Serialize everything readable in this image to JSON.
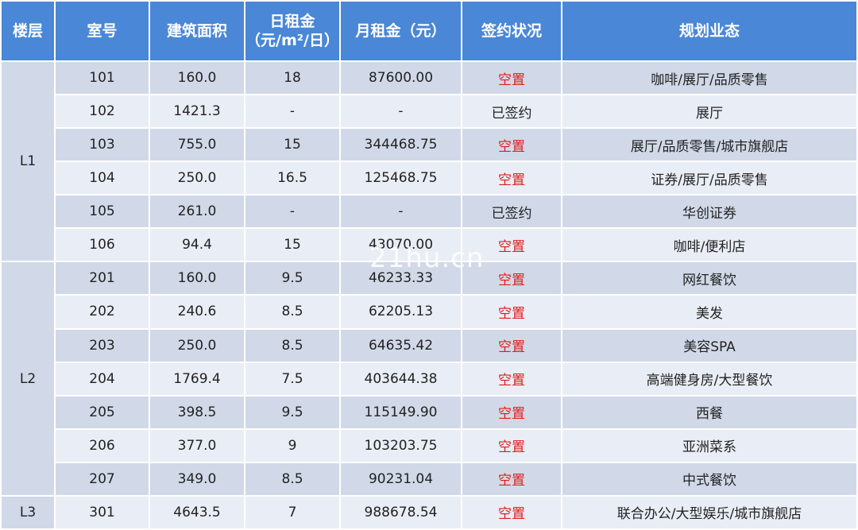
{
  "headers": {
    "floor": "楼层",
    "room": "室号",
    "area": "建筑面积",
    "daily_rent_line1": "日租金",
    "daily_rent_line2": "（元/m²/日）",
    "monthly_rent": "月租金（元）",
    "status": "签约状况",
    "planning": "规划业态"
  },
  "floors": [
    "L1",
    "L2",
    "L3"
  ],
  "rows": [
    {
      "room": "101",
      "area": "160.0",
      "daily": "18",
      "monthly": "87600.00",
      "status": "空置",
      "vacant": true,
      "planning": "咖啡/展厅/品质零售"
    },
    {
      "room": "102",
      "area": "1421.3",
      "daily": "-",
      "monthly": "-",
      "status": "已签约",
      "vacant": false,
      "planning": "展厅"
    },
    {
      "room": "103",
      "area": "755.0",
      "daily": "15",
      "monthly": "344468.75",
      "status": "空置",
      "vacant": true,
      "planning": "展厅/品质零售/城市旗舰店"
    },
    {
      "room": "104",
      "area": "250.0",
      "daily": "16.5",
      "monthly": "125468.75",
      "status": "空置",
      "vacant": true,
      "planning": "证券/展厅/品质零售"
    },
    {
      "room": "105",
      "area": "261.0",
      "daily": "-",
      "monthly": "-",
      "status": "已签约",
      "vacant": false,
      "planning": "华创证券"
    },
    {
      "room": "106",
      "area": "94.4",
      "daily": "15",
      "monthly": "43070.00",
      "status": "空置",
      "vacant": true,
      "planning": "咖啡/便利店"
    },
    {
      "room": "201",
      "area": "160.0",
      "daily": "9.5",
      "monthly": "46233.33",
      "status": "空置",
      "vacant": true,
      "planning": "网红餐饮"
    },
    {
      "room": "202",
      "area": "240.6",
      "daily": "8.5",
      "monthly": "62205.13",
      "status": "空置",
      "vacant": true,
      "planning": "美发"
    },
    {
      "room": "203",
      "area": "250.0",
      "daily": "8.5",
      "monthly": "64635.42",
      "status": "空置",
      "vacant": true,
      "planning": "美容SPA"
    },
    {
      "room": "204",
      "area": "1769.4",
      "daily": "7.5",
      "monthly": "403644.38",
      "status": "空置",
      "vacant": true,
      "planning": "高端健身房/大型餐饮"
    },
    {
      "room": "205",
      "area": "398.5",
      "daily": "9.5",
      "monthly": "115149.90",
      "status": "空置",
      "vacant": true,
      "planning": "西餐"
    },
    {
      "room": "206",
      "area": "377.0",
      "daily": "9",
      "monthly": "103203.75",
      "status": "空置",
      "vacant": true,
      "planning": "亚洲菜系"
    },
    {
      "room": "207",
      "area": "349.0",
      "daily": "8.5",
      "monthly": "90231.04",
      "status": "空置",
      "vacant": true,
      "planning": "中式餐饮"
    },
    {
      "room": "301",
      "area": "4643.5",
      "daily": "7",
      "monthly": "988678.54",
      "status": "空置",
      "vacant": true,
      "planning": "联合办公/大型娱乐/城市旗舰店"
    }
  ],
  "watermark": "21hu.cn",
  "colors": {
    "header_bg": "#4a87d6",
    "row_dark": "#d1d9e8",
    "row_light": "#e9edf5",
    "vacant_text": "#e11b1b"
  }
}
